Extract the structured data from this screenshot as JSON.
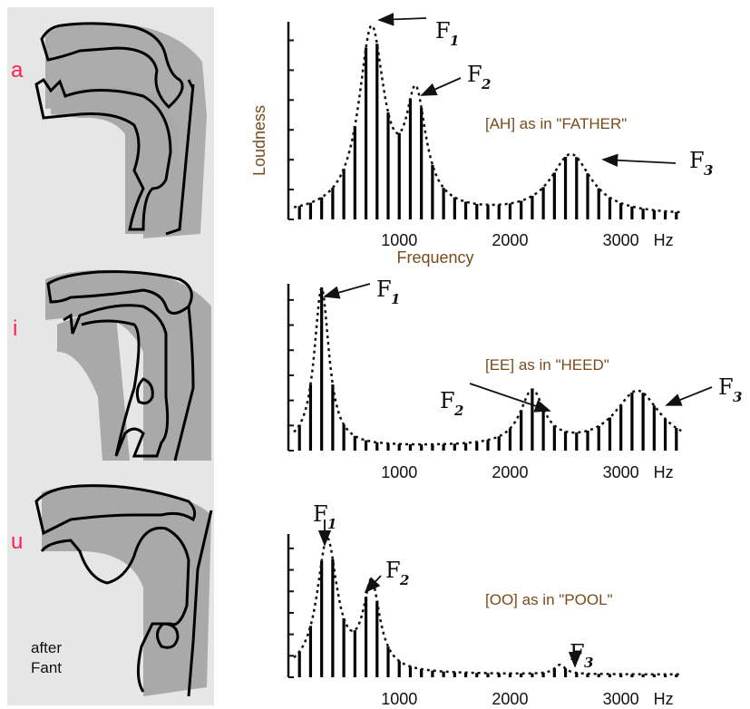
{
  "vowel_panel": {
    "vowels": [
      {
        "label": "a",
        "color": "#ff1f4f"
      },
      {
        "label": "i",
        "color": "#ff1f4f"
      },
      {
        "label": "u",
        "color": "#ff1f4f"
      }
    ],
    "credit_line1": "after",
    "credit_line2": "Fant",
    "tract_fill": "#a9a9a9",
    "panel_bg": "#e6e6e6"
  },
  "colors": {
    "phrase": "#7a4b1a",
    "axis": "#111111"
  },
  "chart_data": [
    {
      "type": "bar",
      "phrase": "[AH] as in \"FATHER\"",
      "ylabel": "Loudness",
      "xlabel": "Frequency",
      "xticks": [
        "1000",
        "2000",
        "3000"
      ],
      "x_unit": "Hz",
      "x_range": [
        0,
        3600
      ],
      "y_range": [
        0,
        1
      ],
      "bar_spacing_hz": 100,
      "formants": [
        {
          "name": "F",
          "sub": "1",
          "freq": 750,
          "amp": 1.0,
          "bw": 140
        },
        {
          "name": "F",
          "sub": "2",
          "freq": 1150,
          "amp": 0.6,
          "bw": 110
        },
        {
          "name": "F",
          "sub": "3",
          "freq": 2550,
          "amp": 0.33,
          "bw": 220
        }
      ]
    },
    {
      "type": "bar",
      "phrase": "[EE] as in \"HEED\"",
      "ylabel": "",
      "xlabel": "",
      "xticks": [
        "1000",
        "2000",
        "3000"
      ],
      "x_unit": "Hz",
      "x_range": [
        0,
        3600
      ],
      "y_range": [
        0,
        1
      ],
      "bar_spacing_hz": 100,
      "formants": [
        {
          "name": "F",
          "sub": "1",
          "freq": 300,
          "amp": 1.0,
          "bw": 80
        },
        {
          "name": "F",
          "sub": "2",
          "freq": 2200,
          "amp": 0.34,
          "bw": 130
        },
        {
          "name": "F",
          "sub": "3",
          "freq": 3150,
          "amp": 0.35,
          "bw": 250
        }
      ]
    },
    {
      "type": "bar",
      "phrase": "[OO] as in \"POOL\"",
      "ylabel": "",
      "xlabel": "",
      "xticks": [
        "1000",
        "2000",
        "3000"
      ],
      "x_unit": "Hz",
      "x_range": [
        0,
        3600
      ],
      "y_range": [
        0,
        1
      ],
      "bar_spacing_hz": 100,
      "formants": [
        {
          "name": "F",
          "sub": "1",
          "freq": 350,
          "amp": 1.0,
          "bw": 110
        },
        {
          "name": "F",
          "sub": "2",
          "freq": 750,
          "amp": 0.65,
          "bw": 90
        },
        {
          "name": "F",
          "sub": "3",
          "freq": 2450,
          "amp": 0.07,
          "bw": 60
        }
      ]
    }
  ]
}
